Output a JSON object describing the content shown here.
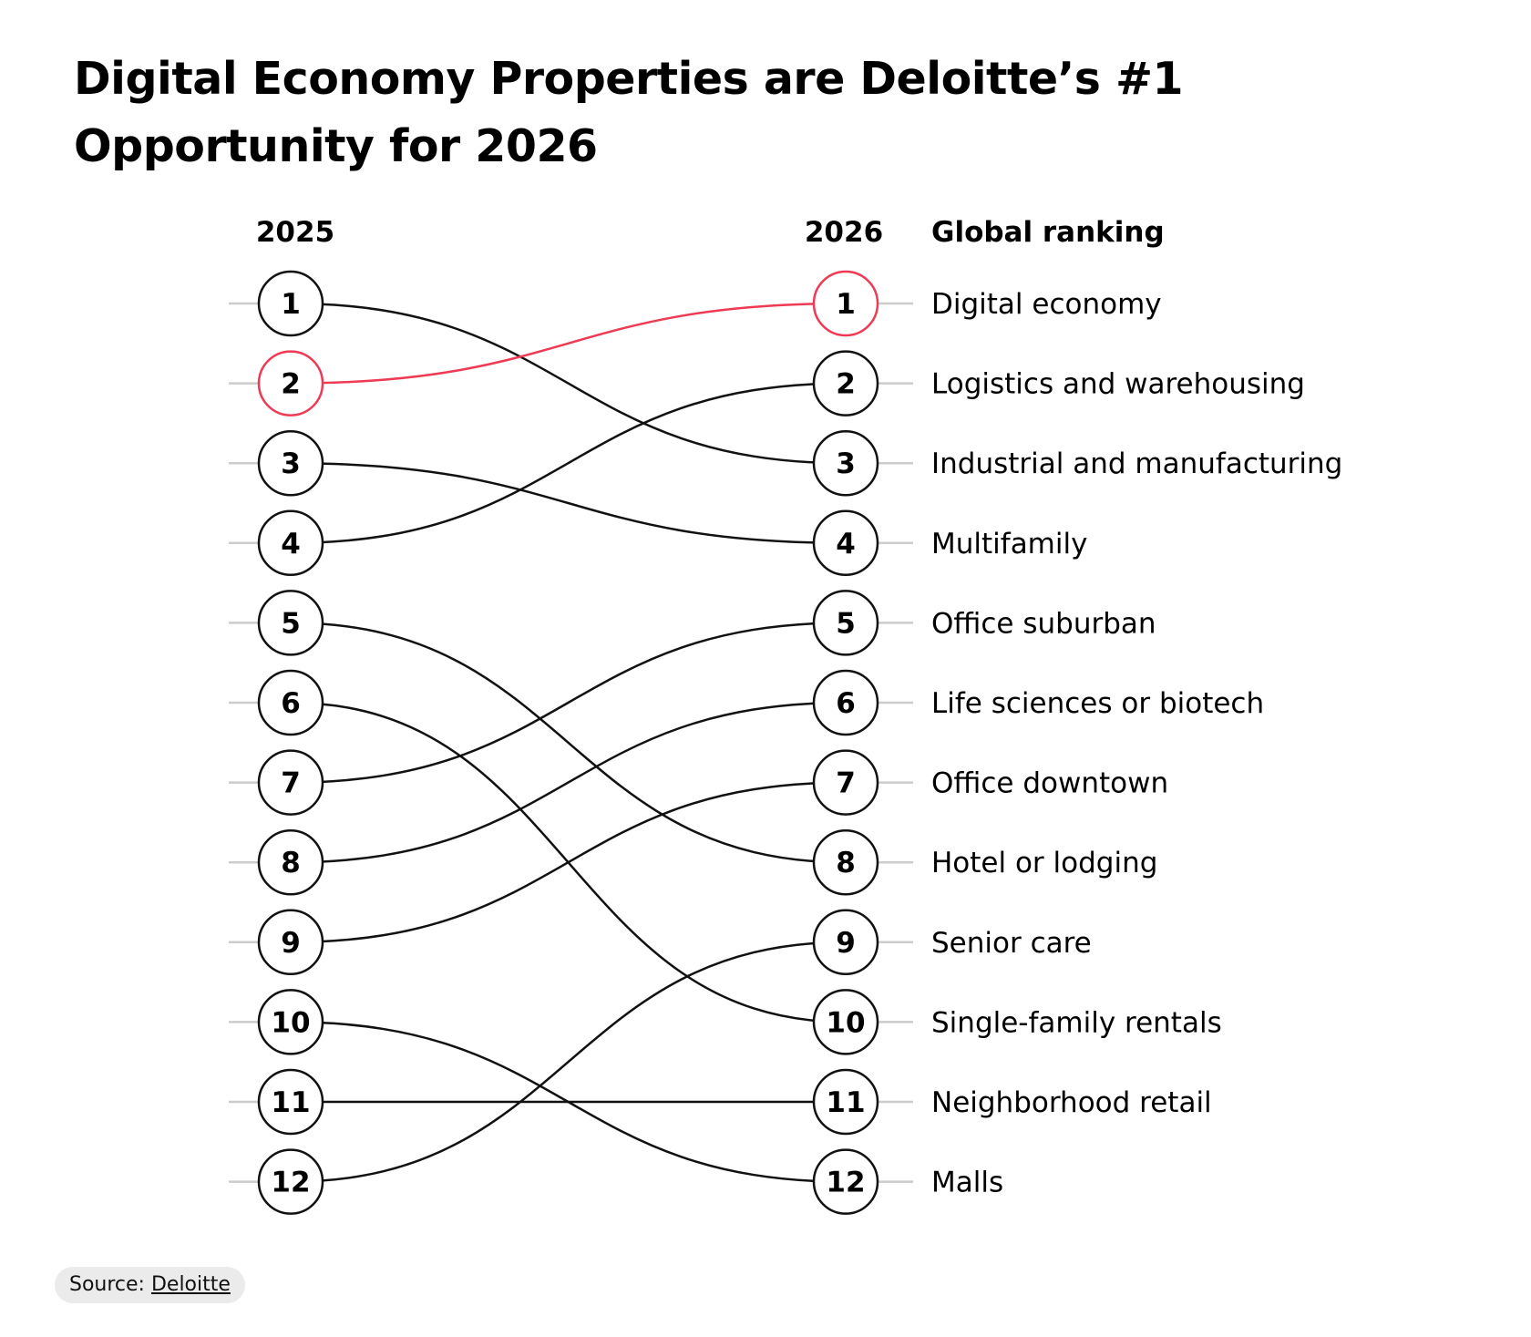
{
  "chart_data": {
    "type": "slope",
    "title": "Digital Economy Properties are Deloitte’s #1 Opportunity for 2026",
    "title_lines": [
      "Digital Economy Properties are Deloitte’s #1",
      "Opportunity for 2026"
    ],
    "left_header": "2025",
    "right_header": "2026",
    "category_header": "Global ranking",
    "rank_labels": [
      "1",
      "2",
      "3",
      "4",
      "5",
      "6",
      "7",
      "8",
      "9",
      "10",
      "11",
      "12"
    ],
    "series": [
      {
        "name": "Digital economy",
        "rank_2025": 2,
        "rank_2026": 1,
        "highlight": true
      },
      {
        "name": "Logistics and warehousing",
        "rank_2025": 4,
        "rank_2026": 2,
        "highlight": false
      },
      {
        "name": "Industrial and manufacturing",
        "rank_2025": 1,
        "rank_2026": 3,
        "highlight": false
      },
      {
        "name": "Multifamily",
        "rank_2025": 3,
        "rank_2026": 4,
        "highlight": false
      },
      {
        "name": "Office suburban",
        "rank_2025": 7,
        "rank_2026": 5,
        "highlight": false
      },
      {
        "name": "Life sciences or biotech",
        "rank_2025": 8,
        "rank_2026": 6,
        "highlight": false
      },
      {
        "name": "Office downtown",
        "rank_2025": 9,
        "rank_2026": 7,
        "highlight": false
      },
      {
        "name": "Hotel or lodging",
        "rank_2025": 5,
        "rank_2026": 8,
        "highlight": false
      },
      {
        "name": "Senior care",
        "rank_2025": 12,
        "rank_2026": 9,
        "highlight": false
      },
      {
        "name": "Single-family rentals",
        "rank_2025": 6,
        "rank_2026": 10,
        "highlight": false
      },
      {
        "name": "Neighborhood retail",
        "rank_2025": 11,
        "rank_2026": 11,
        "highlight": false
      },
      {
        "name": "Malls",
        "rank_2025": 10,
        "rank_2026": 12,
        "highlight": false
      }
    ]
  },
  "colors": {
    "highlight": "#ef3a54",
    "line": "#111111",
    "grid": "#cccccc"
  },
  "source": {
    "prefix": "Source: ",
    "link_text": "Deloitte"
  }
}
